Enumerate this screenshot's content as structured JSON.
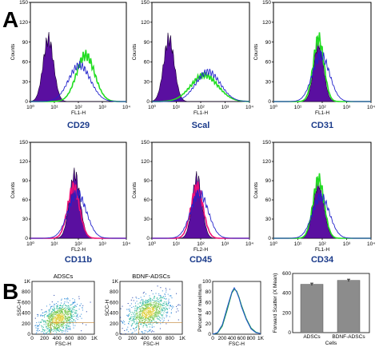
{
  "panel_labels": {
    "a": "A",
    "b": "B"
  },
  "colors": {
    "isotype_fill": "#5a0fa0",
    "marker_green": "#22dd22",
    "marker_blue": "#2222cc",
    "marker_magenta": "#ee1177",
    "bar_fill": "#8c8c8c"
  },
  "chart_data": [
    {
      "type": "area",
      "id": "hist-cd29",
      "title": "CD29",
      "xlabel": "FL1-H",
      "ylabel": "Counts",
      "x_scale": "log",
      "xlim": [
        1,
        10000
      ],
      "ylim": [
        0,
        150
      ],
      "y_ticks": [
        "0",
        "30",
        "60",
        "90",
        "120",
        "150"
      ],
      "x_ticks": [
        "10⁰",
        "10¹",
        "10²",
        "10³",
        "10⁴"
      ],
      "series": [
        {
          "role": "isotype",
          "style": "filled",
          "color": "#5a0fa0",
          "peak_log": 0.75,
          "width": 0.22,
          "peak": 95
        },
        {
          "role": "marker",
          "style": "line",
          "color": "#22dd22",
          "peak_log": 2.3,
          "width": 0.38,
          "peak": 70
        },
        {
          "role": "marker",
          "style": "line",
          "color": "#2222cc",
          "peak_log": 2.05,
          "width": 0.45,
          "peak": 55
        }
      ]
    },
    {
      "type": "area",
      "id": "hist-scal",
      "title": "Scal",
      "xlabel": "FL1-H",
      "ylabel": "Counts",
      "x_scale": "log",
      "xlim": [
        1,
        10000
      ],
      "ylim": [
        0,
        150
      ],
      "y_ticks": [
        "0",
        "30",
        "60",
        "90",
        "120",
        "150"
      ],
      "x_ticks": [
        "10⁰",
        "10¹",
        "10²",
        "10³",
        "10⁴"
      ],
      "series": [
        {
          "role": "isotype",
          "style": "filled",
          "color": "#5a0fa0",
          "peak_log": 0.7,
          "width": 0.22,
          "peak": 95
        },
        {
          "role": "marker",
          "style": "line",
          "color": "#22dd22",
          "peak_log": 2.15,
          "width": 0.55,
          "peak": 40
        },
        {
          "role": "marker",
          "style": "line",
          "color": "#2222cc",
          "peak_log": 2.3,
          "width": 0.5,
          "peak": 45
        }
      ]
    },
    {
      "type": "area",
      "id": "hist-cd31",
      "title": "CD31",
      "xlabel": "FL1-H",
      "ylabel": "Counts",
      "x_scale": "log",
      "xlim": [
        1,
        10000
      ],
      "ylim": [
        0,
        150
      ],
      "y_ticks": [
        "0",
        "30",
        "60",
        "90",
        "120",
        "150"
      ],
      "x_ticks": [
        "10⁰",
        "10¹",
        "10²",
        "10³",
        "10⁴"
      ],
      "series": [
        {
          "role": "isotype",
          "style": "filled",
          "color": "#5a0fa0",
          "peak_log": 1.85,
          "width": 0.2,
          "peak": 88
        },
        {
          "role": "marker",
          "style": "line",
          "color": "#22dd22",
          "peak_log": 1.85,
          "width": 0.22,
          "peak": 95
        },
        {
          "role": "marker",
          "style": "line",
          "color": "#2222cc",
          "peak_log": 1.95,
          "width": 0.35,
          "peak": 70
        }
      ]
    },
    {
      "type": "area",
      "id": "hist-cd11b",
      "title": "CD11b",
      "xlabel": "FL2-H",
      "ylabel": "Counts",
      "x_scale": "log",
      "xlim": [
        1,
        10000
      ],
      "ylim": [
        0,
        150
      ],
      "y_ticks": [
        "0",
        "30",
        "60",
        "90",
        "120",
        "150"
      ],
      "x_ticks": [
        "10⁰",
        "10¹",
        "10²",
        "10³",
        "10⁴"
      ],
      "series": [
        {
          "role": "isotype",
          "style": "filled",
          "color": "#5a0fa0",
          "peak_log": 1.85,
          "width": 0.22,
          "peak": 100
        },
        {
          "role": "marker",
          "style": "line",
          "color": "#ee1177",
          "peak_log": 1.8,
          "width": 0.25,
          "peak": 80
        },
        {
          "role": "marker",
          "style": "line",
          "color": "#2222cc",
          "peak_log": 1.95,
          "width": 0.38,
          "peak": 70
        }
      ]
    },
    {
      "type": "area",
      "id": "hist-cd45",
      "title": "CD45",
      "xlabel": "FL2-H",
      "ylabel": "Counts",
      "x_scale": "log",
      "xlim": [
        1,
        10000
      ],
      "ylim": [
        0,
        150
      ],
      "y_ticks": [
        "0",
        "30",
        "60",
        "90",
        "120",
        "150"
      ],
      "x_ticks": [
        "10⁰",
        "10¹",
        "10²",
        "10³",
        "10⁴"
      ],
      "series": [
        {
          "role": "isotype",
          "style": "filled",
          "color": "#5a0fa0",
          "peak_log": 1.85,
          "width": 0.2,
          "peak": 95
        },
        {
          "role": "marker",
          "style": "line",
          "color": "#ee1177",
          "peak_log": 1.85,
          "width": 0.25,
          "peak": 80
        },
        {
          "role": "marker",
          "style": "line",
          "color": "#2222cc",
          "peak_log": 1.95,
          "width": 0.36,
          "peak": 70
        }
      ]
    },
    {
      "type": "area",
      "id": "hist-cd34",
      "title": "CD34",
      "xlabel": "FL1-H",
      "ylabel": "Counts",
      "x_scale": "log",
      "xlim": [
        1,
        10000
      ],
      "ylim": [
        0,
        150
      ],
      "y_ticks": [
        "0",
        "30",
        "60",
        "90",
        "120",
        "150"
      ],
      "x_ticks": [
        "10⁰",
        "10¹",
        "10²",
        "10³",
        "10⁴"
      ],
      "series": [
        {
          "role": "isotype",
          "style": "filled",
          "color": "#5a0fa0",
          "peak_log": 1.85,
          "width": 0.22,
          "peak": 85
        },
        {
          "role": "marker",
          "style": "line",
          "color": "#22dd22",
          "peak_log": 1.85,
          "width": 0.23,
          "peak": 92
        },
        {
          "role": "marker",
          "style": "line",
          "color": "#2222cc",
          "peak_log": 1.95,
          "width": 0.35,
          "peak": 65
        }
      ]
    },
    {
      "type": "scatter",
      "id": "scatter-adscs",
      "title": "ADSCs",
      "xlabel": "FSC-H",
      "ylabel": "SSC-H",
      "xlim": [
        0,
        1000
      ],
      "ylim": [
        0,
        1000
      ],
      "x_ticks": [
        "0",
        "200",
        "400",
        "600",
        "800",
        "1K"
      ],
      "y_ticks": [
        "0",
        "200",
        "400",
        "600",
        "800",
        "1K"
      ],
      "cluster": {
        "x_center": 420,
        "y_center": 300,
        "spread": 180
      }
    },
    {
      "type": "scatter",
      "id": "scatter-bdnf",
      "title": "BDNF-ADSCs",
      "xlabel": "FSC-H",
      "ylabel": "SCC-H",
      "xlim": [
        0,
        1000
      ],
      "ylim": [
        0,
        1000
      ],
      "x_ticks": [
        "0",
        "200",
        "400",
        "600",
        "800",
        "1K"
      ],
      "y_ticks": [
        "0",
        "200",
        "400",
        "600",
        "800",
        "1K"
      ],
      "cluster": {
        "x_center": 450,
        "y_center": 420,
        "spread": 190
      }
    },
    {
      "type": "line",
      "id": "fsc-overlay",
      "xlabel": "FSC-H",
      "ylabel": "Percent of maximum",
      "xlim": [
        0,
        1000
      ],
      "ylim": [
        0,
        100
      ],
      "x_ticks": [
        "0",
        "200",
        "400",
        "600",
        "800",
        "1K"
      ],
      "y_ticks": [
        "0",
        "20",
        "40",
        "60",
        "80",
        "100"
      ],
      "series": [
        {
          "color": "#1a9a4a",
          "x": [
            0,
            100,
            200,
            300,
            400,
            450,
            500,
            550,
            600,
            700,
            800,
            900,
            1000
          ],
          "y": [
            0,
            2,
            15,
            45,
            78,
            85,
            82,
            70,
            55,
            30,
            12,
            4,
            1
          ]
        },
        {
          "color": "#2255cc",
          "x": [
            0,
            100,
            200,
            300,
            400,
            450,
            500,
            550,
            600,
            700,
            800,
            900,
            1000
          ],
          "y": [
            0,
            3,
            18,
            50,
            80,
            88,
            80,
            68,
            52,
            28,
            10,
            3,
            1
          ]
        }
      ]
    },
    {
      "type": "bar",
      "id": "forward-scatter-bars",
      "categories": [
        "ADSCs",
        "BDNF-ADSCs"
      ],
      "values": [
        490,
        530
      ],
      "errors": [
        12,
        12
      ],
      "xlabel": "Cells",
      "ylabel": "Forward Scatter (X Mean)",
      "ylim": [
        0,
        600
      ],
      "y_ticks": [
        "0",
        "200",
        "400",
        "600"
      ]
    }
  ]
}
